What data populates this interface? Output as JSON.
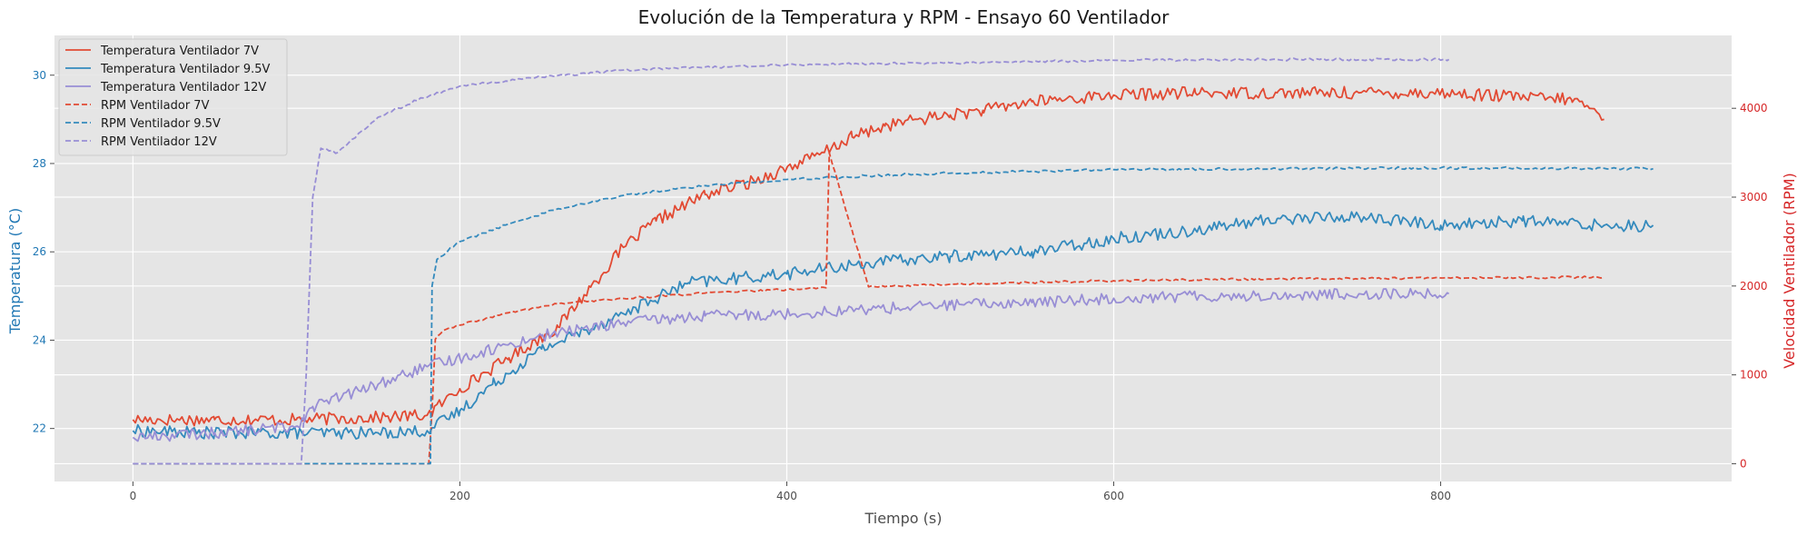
{
  "chart_data": {
    "type": "line",
    "title": "Evolución de la Temperatura y RPM - Ensayo 60 Ventilador",
    "xlabel": "Tiempo (s)",
    "ylabel_left": "Temperatura (°C)",
    "ylabel_right": "Velocidad Ventilador (RPM)",
    "xlim": [
      -48,
      978
    ],
    "ylim_left": [
      20.8,
      30.9
    ],
    "ylim_right": [
      -200,
      4820
    ],
    "xticks": [
      0,
      200,
      400,
      600,
      800
    ],
    "yticks_left": [
      22,
      24,
      26,
      28,
      30
    ],
    "yticks_right": [
      0,
      1000,
      2000,
      3000,
      4000
    ],
    "grid": true,
    "legend_position": "top-left",
    "colors": {
      "left_axis": "#1f77b4",
      "right_axis": "#d62728",
      "text": "#4d4d4d",
      "background": "#e5e5e5"
    },
    "series": [
      {
        "name": "Temperatura Ventilador 7V",
        "axis": "left",
        "style": "solid",
        "color": "#e24a33",
        "points": [
          [
            0,
            22.2
          ],
          [
            50,
            22.2
          ],
          [
            100,
            22.2
          ],
          [
            150,
            22.25
          ],
          [
            180,
            22.3
          ],
          [
            200,
            22.9
          ],
          [
            230,
            23.6
          ],
          [
            260,
            24.3
          ],
          [
            280,
            25.2
          ],
          [
            300,
            26.1
          ],
          [
            320,
            26.7
          ],
          [
            350,
            27.3
          ],
          [
            380,
            27.6
          ],
          [
            400,
            27.9
          ],
          [
            420,
            28.2
          ],
          [
            440,
            28.6
          ],
          [
            460,
            28.85
          ],
          [
            480,
            29.0
          ],
          [
            500,
            29.1
          ],
          [
            520,
            29.2
          ],
          [
            550,
            29.4
          ],
          [
            600,
            29.55
          ],
          [
            650,
            29.6
          ],
          [
            700,
            29.6
          ],
          [
            750,
            29.6
          ],
          [
            800,
            29.6
          ],
          [
            850,
            29.5
          ],
          [
            880,
            29.45
          ],
          [
            890,
            29.3
          ],
          [
            900,
            29.0
          ]
        ],
        "noise": 0.14
      },
      {
        "name": "Temperatura Ventilador 9.5V",
        "axis": "left",
        "style": "solid",
        "color": "#348abd",
        "points": [
          [
            0,
            21.95
          ],
          [
            50,
            21.9
          ],
          [
            100,
            21.9
          ],
          [
            150,
            21.9
          ],
          [
            180,
            21.95
          ],
          [
            200,
            22.4
          ],
          [
            220,
            23.0
          ],
          [
            250,
            23.8
          ],
          [
            300,
            24.6
          ],
          [
            340,
            25.3
          ],
          [
            400,
            25.5
          ],
          [
            450,
            25.75
          ],
          [
            500,
            25.9
          ],
          [
            550,
            26.0
          ],
          [
            600,
            26.3
          ],
          [
            650,
            26.5
          ],
          [
            700,
            26.75
          ],
          [
            750,
            26.8
          ],
          [
            800,
            26.6
          ],
          [
            850,
            26.7
          ],
          [
            900,
            26.6
          ],
          [
            930,
            26.6
          ]
        ],
        "noise": 0.14
      },
      {
        "name": "Temperatura Ventilador 12V",
        "axis": "left",
        "style": "solid",
        "color": "#988ed5",
        "points": [
          [
            0,
            21.8
          ],
          [
            50,
            21.9
          ],
          [
            100,
            22.05
          ],
          [
            110,
            22.5
          ],
          [
            150,
            23.0
          ],
          [
            180,
            23.4
          ],
          [
            200,
            23.6
          ],
          [
            250,
            24.1
          ],
          [
            300,
            24.4
          ],
          [
            350,
            24.55
          ],
          [
            400,
            24.6
          ],
          [
            450,
            24.7
          ],
          [
            500,
            24.8
          ],
          [
            550,
            24.85
          ],
          [
            600,
            24.95
          ],
          [
            650,
            25.0
          ],
          [
            700,
            25.0
          ],
          [
            750,
            25.05
          ],
          [
            805,
            25.05
          ]
        ],
        "noise": 0.13
      },
      {
        "name": "RPM Ventilador 7V",
        "axis": "right",
        "style": "dashed",
        "color": "#e24a33",
        "points": [
          [
            0,
            0
          ],
          [
            181,
            0
          ],
          [
            183,
            600
          ],
          [
            185,
            1400
          ],
          [
            190,
            1500
          ],
          [
            200,
            1560
          ],
          [
            230,
            1700
          ],
          [
            260,
            1800
          ],
          [
            300,
            1860
          ],
          [
            350,
            1920
          ],
          [
            400,
            1960
          ],
          [
            424,
            1980
          ],
          [
            425,
            2760
          ],
          [
            426,
            3500
          ],
          [
            450,
            1990
          ],
          [
            500,
            2020
          ],
          [
            550,
            2040
          ],
          [
            600,
            2060
          ],
          [
            700,
            2080
          ],
          [
            800,
            2090
          ],
          [
            900,
            2100
          ]
        ],
        "noise": 12
      },
      {
        "name": "RPM Ventilador 9.5V",
        "axis": "right",
        "style": "dashed",
        "color": "#348abd",
        "points": [
          [
            0,
            0
          ],
          [
            182,
            0
          ],
          [
            183,
            2000
          ],
          [
            186,
            2300
          ],
          [
            200,
            2500
          ],
          [
            230,
            2700
          ],
          [
            260,
            2870
          ],
          [
            300,
            3020
          ],
          [
            350,
            3130
          ],
          [
            400,
            3200
          ],
          [
            450,
            3240
          ],
          [
            500,
            3270
          ],
          [
            550,
            3290
          ],
          [
            600,
            3310
          ],
          [
            700,
            3320
          ],
          [
            800,
            3330
          ],
          [
            930,
            3320
          ]
        ],
        "noise": 14
      },
      {
        "name": "RPM Ventilador 12V",
        "axis": "right",
        "style": "dashed",
        "color": "#988ed5",
        "points": [
          [
            0,
            0
          ],
          [
            103,
            0
          ],
          [
            106,
            1000
          ],
          [
            110,
            3000
          ],
          [
            115,
            3550
          ],
          [
            125,
            3500
          ],
          [
            150,
            3900
          ],
          [
            175,
            4100
          ],
          [
            200,
            4250
          ],
          [
            250,
            4350
          ],
          [
            300,
            4430
          ],
          [
            400,
            4490
          ],
          [
            500,
            4510
          ],
          [
            600,
            4540
          ],
          [
            700,
            4550
          ],
          [
            805,
            4550
          ]
        ],
        "noise": 14
      }
    ]
  }
}
